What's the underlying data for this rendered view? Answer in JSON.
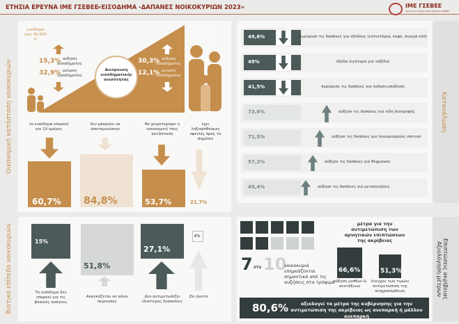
{
  "header": {
    "title": "ΕΤΗΣΙΑ ΕΡΕΥΝΑ ΙΜΕ ΓΣΕΒΕΕ",
    "subtitle": "«ΕΙΣΟΔΗΜΑ -ΔΑΠΑΝΕΣ ΝΟΙΚΟΚΥΡΙΩΝ 2023»",
    "logo": "ΙΜΕ ΓΣΕΒΕΕ",
    "logo_sub": "Ινστιτούτο Μικρών Επιχειρήσεων ΓΣΕΒΕΕ"
  },
  "finances": {
    "label": "Οικονομική κατάσταση νοικοκυριών",
    "low": {
      "group": "εισόδημα έως 30.000 €",
      "increase": "15,3%",
      "increase_label": "αύξηση εισοδήματος",
      "decrease": "32,9%",
      "decrease_label": "μείωση εισοδήματος"
    },
    "high": {
      "group": "εισόδημα άνω των 30.000 €",
      "increase": "30,3%",
      "increase_label": "αύξηση εισοδήματος",
      "decrease": "12,1%",
      "decrease_label": "μείωση εισοδήματος"
    },
    "center": "Διεύρυνση εισοδηματικής ανισότητας",
    "items": [
      {
        "label": "το εισόδημα επαρκεί για 19 ημέρες",
        "value": "60,7%"
      },
      {
        "label": "δεν μπορούν να αποταμιεύσουν",
        "value": "84,8%"
      },
      {
        "label": "θα χειροτερέψει η οικονομική τους κατάσταση",
        "value": "53,7%"
      },
      {
        "label": "έχει ληξιπρόθεσμες οφειλές προς το Δημόσιο",
        "value": "21,7%"
      }
    ]
  },
  "consumption": {
    "label": "Κατανάλωση",
    "rows": [
      {
        "value": "49,6%",
        "label": "περιόρισε τις δαπάνες για εξόδους (εστιατόρια, καφέ, σινεμά κλπ)"
      },
      {
        "value": "49%",
        "label": "έξοδα λιγότερα για ταξίδια"
      },
      {
        "value": "41,5%",
        "label": "περιόρισε τις δαπάνες για ένδυση-υπόδηση"
      },
      {
        "value": "73,6%",
        "label": "αύξησε τις δαπάνες για είδη διατροφής"
      },
      {
        "value": "71,5%",
        "label": "αύξησε τις δαπάνες για λογαριασμούς σπιτιού"
      },
      {
        "value": "57,2%",
        "label": "αύξησε τις δαπάνες για θέρμανση"
      },
      {
        "value": "49,4%",
        "label": "αύξησε τις δαπάνες για μετακινήσεις"
      }
    ]
  },
  "living": {
    "label": "Βιοτικό επίπεδο νοικοκυριών",
    "items": [
      {
        "value": "15%",
        "label": "Το εισόδημα δεν επαρκεί για τις βασικές ανάγκες"
      },
      {
        "value": "51,8%",
        "label": "Αναγκάζεται να κάνει περικοπές"
      },
      {
        "value": "27,1%",
        "label": "Δεν αντιμετωπίζει ιδιαίτερες δυσκολίες"
      },
      {
        "value": "6%",
        "label": "Ζει άνετα"
      }
    ]
  },
  "impact": {
    "label1": "Επιπτώσεις ακρίβειας",
    "label2": "Αξιολόγηση μέτρων",
    "big1": "7",
    "mid": "στα",
    "big2": "10",
    "text": "νοικοκυριά επηρεάζονται σημαντικά από τις αυξήσεις στα τρόφιμα",
    "measures_title": "μέτρα για την αντιμετώπιση των αρνητικών επιπτώσεων της ακρίβειας",
    "measures": [
      {
        "value": "66,6%",
        "label": "αύξηση μισθών & συντάξεων"
      },
      {
        "value": "51,3%",
        "label": "έλεγχος των τιμών/ αντιμετώπιση της αισχροκέρδειας"
      }
    ],
    "bottom_value": "80,6%",
    "bottom_text": "αξιολογεί τα μέτρα της κυβέρνησης για την αντιμετώπιση της ακρίβειας ως ανεπαρκή ή μάλλον ανεπαρκή"
  }
}
